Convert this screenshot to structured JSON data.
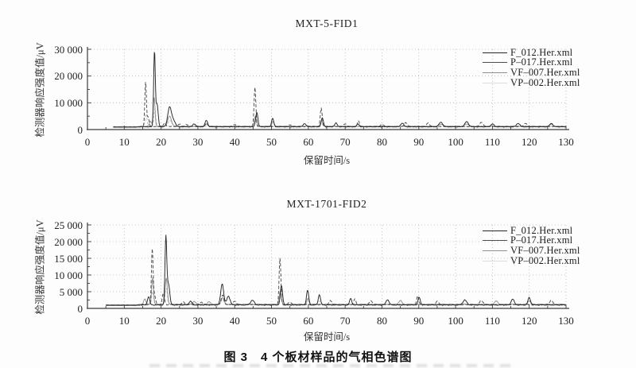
{
  "figure": {
    "caption": "图 3　4 个板材样品的气相色谱图"
  },
  "chart_data": [
    {
      "type": "line",
      "subtype": "chromatogram",
      "title": "MXT-5-FID1",
      "xlabel": "保留时间/s",
      "ylabel": "检测器响应强度值/μV",
      "xlim": [
        0,
        130
      ],
      "ylim": [
        0,
        30000
      ],
      "xticks": [
        0,
        10,
        20,
        30,
        40,
        50,
        60,
        70,
        80,
        90,
        100,
        110,
        120,
        130
      ],
      "minor_tick_step_x": 5,
      "yticks": {
        "values": [
          0,
          10000,
          20000,
          30000
        ],
        "labels": [
          "0",
          "10 000",
          "20 000",
          "30 000"
        ]
      },
      "grid": "dotted",
      "legend": {
        "position": "top-right",
        "entries": [
          "F_012.Her.xml",
          "P–017.Her.xml",
          "VF–007.Her.xml",
          "VP–002.Her.xml"
        ]
      },
      "t_start": 7,
      "peaks_format": [
        "retention_time_s",
        "peak_intensity_uV",
        "peak_width_s"
      ],
      "series": [
        {
          "name": "F_012.Her.xml",
          "color": "#262626",
          "dash": "",
          "baseline": 880,
          "peaks": [
            [
              18.2,
              28000,
              0.22
            ],
            [
              18.9,
              8500,
              0.3
            ],
            [
              22.3,
              7300,
              0.5
            ],
            [
              23.4,
              2200,
              0.5
            ],
            [
              29,
              1100,
              0.4
            ],
            [
              32.3,
              2400,
              0.35
            ],
            [
              46.0,
              5400,
              0.3
            ],
            [
              50.3,
              3200,
              0.3
            ],
            [
              59,
              1200,
              0.4
            ],
            [
              63.8,
              3300,
              0.3
            ],
            [
              67.5,
              1400,
              0.35
            ],
            [
              73.5,
              1100,
              0.3
            ],
            [
              85.5,
              1400,
              0.4
            ],
            [
              96,
              1700,
              0.5
            ],
            [
              103,
              1900,
              0.5
            ],
            [
              110,
              1100,
              0.4
            ],
            [
              117,
              1300,
              0.45
            ],
            [
              126,
              1300,
              0.4
            ]
          ]
        },
        {
          "name": "P–017.Her.xml",
          "color": "#4d4d4d",
          "dash": "4 2.4",
          "baseline": 960,
          "peaks": [
            [
              15.8,
              16800,
              0.22
            ],
            [
              16.5,
              3500,
              0.25
            ],
            [
              21,
              1400,
              0.3
            ],
            [
              25,
              1000,
              0.35
            ],
            [
              27,
              800,
              0.35
            ],
            [
              32.4,
              1500,
              0.3
            ],
            [
              40,
              800,
              0.4
            ],
            [
              45.5,
              14700,
              0.24
            ],
            [
              55,
              700,
              0.4
            ],
            [
              63.5,
              6900,
              0.26
            ],
            [
              70,
              1100,
              0.35
            ],
            [
              73.6,
              2200,
              0.28
            ],
            [
              80,
              900,
              0.4
            ],
            [
              86.5,
              1500,
              0.4
            ],
            [
              92.5,
              1400,
              0.4
            ],
            [
              107,
              1600,
              0.45
            ],
            [
              119,
              1200,
              0.45
            ]
          ]
        },
        {
          "name": "VF–007.Her.xml",
          "color": "#909090",
          "dash": "",
          "baseline": 1040,
          "peaks": [
            [
              17.1,
              1900,
              0.3
            ],
            [
              18.1,
              11000,
              0.24
            ],
            [
              22.3,
              3800,
              0.5
            ],
            [
              32.3,
              900,
              0.35
            ],
            [
              45.6,
              3800,
              0.3
            ],
            [
              50.4,
              1800,
              0.3
            ],
            [
              63.6,
              2100,
              0.3
            ],
            [
              96,
              800,
              0.5
            ],
            [
              103,
              900,
              0.5
            ],
            [
              126,
              900,
              0.4
            ]
          ]
        },
        {
          "name": "VP–002.Her.xml",
          "color": "#bdbdbd",
          "dash": "3 2",
          "baseline": 1120,
          "peaks": [
            [
              15.9,
              4600,
              0.25
            ],
            [
              18.3,
              6500,
              0.25
            ],
            [
              22.4,
              2200,
              0.5
            ],
            [
              45.6,
              2300,
              0.3
            ],
            [
              63.6,
              1200,
              0.3
            ],
            [
              110,
              600,
              0.4
            ]
          ]
        }
      ]
    },
    {
      "type": "line",
      "subtype": "chromatogram",
      "title": "MXT-1701-FID2",
      "xlabel": "保留时间/s",
      "ylabel": "检测器响应强度值/μV",
      "xlim": [
        0,
        130
      ],
      "ylim": [
        0,
        25000
      ],
      "xticks": [
        0,
        10,
        20,
        30,
        40,
        50,
        60,
        70,
        80,
        90,
        100,
        110,
        120,
        130
      ],
      "minor_tick_step_x": 5,
      "yticks": {
        "values": [
          0,
          5000,
          10000,
          15000,
          20000,
          25000
        ],
        "labels": [
          "0",
          "5 000",
          "10 000",
          "15 000",
          "20 000",
          "25 000"
        ]
      },
      "grid": "dotted",
      "legend": {
        "position": "top-right",
        "entries": [
          "F_012.Her.xml",
          "P–017.Her.xml",
          "VF–007.Her.xml",
          "VP–002.Her.xml"
        ]
      },
      "t_start": 5,
      "peaks_format": [
        "retention_time_s",
        "peak_intensity_uV",
        "peak_width_s"
      ],
      "series": [
        {
          "name": "F_012.Her.xml",
          "color": "#262626",
          "dash": "",
          "baseline": 880,
          "peaks": [
            [
              16.6,
              2500,
              0.3
            ],
            [
              21.3,
              20000,
              0.24
            ],
            [
              22.0,
              6300,
              0.35
            ],
            [
              28,
              1100,
              0.4
            ],
            [
              36.6,
              6300,
              0.4
            ],
            [
              38.3,
              2600,
              0.45
            ],
            [
              44.8,
              1400,
              0.5
            ],
            [
              52.7,
              5800,
              0.3
            ],
            [
              59.8,
              4400,
              0.3
            ],
            [
              63,
              3100,
              0.3
            ],
            [
              71.5,
              1900,
              0.3
            ],
            [
              81.5,
              1600,
              0.4
            ],
            [
              90.1,
              2300,
              0.3
            ],
            [
              102.5,
              1500,
              0.5
            ],
            [
              115.5,
              1800,
              0.4
            ],
            [
              120,
              2200,
              0.35
            ]
          ]
        },
        {
          "name": "P–017.Her.xml",
          "color": "#4d4d4d",
          "dash": "4 2.4",
          "baseline": 960,
          "peaks": [
            [
              17.6,
              16400,
              0.22
            ],
            [
              18.2,
              2900,
              0.3
            ],
            [
              20.6,
              3300,
              0.3
            ],
            [
              26,
              800,
              0.4
            ],
            [
              31,
              800,
              0.4
            ],
            [
              36.7,
              3000,
              0.35
            ],
            [
              40,
              1100,
              0.4
            ],
            [
              52.3,
              13800,
              0.24
            ],
            [
              55,
              800,
              0.4
            ],
            [
              66,
              1300,
              0.35
            ],
            [
              72.6,
              1700,
              0.3
            ],
            [
              77,
              1200,
              0.4
            ],
            [
              89.7,
              2600,
              0.28
            ],
            [
              95,
              1000,
              0.4
            ],
            [
              107,
              1300,
              0.45
            ],
            [
              126,
              1400,
              0.4
            ]
          ]
        },
        {
          "name": "VF–007.Her.xml",
          "color": "#909090",
          "dash": "",
          "baseline": 1040,
          "peaks": [
            [
              15.6,
              1700,
              0.3
            ],
            [
              17.7,
              8000,
              0.25
            ],
            [
              21.4,
              8000,
              0.3
            ],
            [
              29,
              900,
              0.4
            ],
            [
              33,
              800,
              0.4
            ],
            [
              36.7,
              2000,
              0.4
            ],
            [
              52.4,
              4000,
              0.3
            ],
            [
              59.9,
              1700,
              0.3
            ],
            [
              85,
              1200,
              0.4
            ],
            [
              111,
              1100,
              0.4
            ],
            [
              120,
              1100,
              0.4
            ]
          ]
        },
        {
          "name": "VP–002.Her.xml",
          "color": "#bdbdbd",
          "dash": "3 2",
          "baseline": 1120,
          "peaks": [
            [
              17.7,
              3800,
              0.25
            ],
            [
              21.4,
              4800,
              0.28
            ],
            [
              36.7,
              1400,
              0.4
            ],
            [
              52.4,
              2400,
              0.3
            ],
            [
              63,
              900,
              0.4
            ],
            [
              90,
              800,
              0.4
            ]
          ]
        }
      ]
    }
  ]
}
